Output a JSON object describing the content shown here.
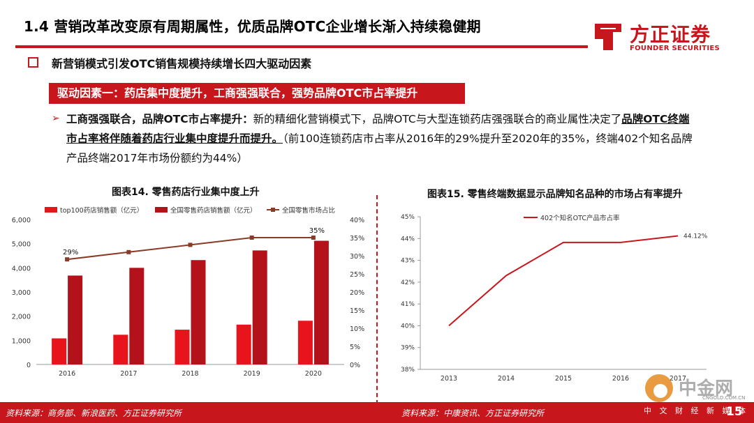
{
  "header": {
    "title": "1.4 营销改革改变原有周期属性，优质品牌OTC企业增长渐入持续稳健期",
    "logo_cn": "方正证券",
    "logo_en": "FOUNDER SECURITIES"
  },
  "section": {
    "title": "新营销模式引发OTC销售规模持续增长四大驱动因素"
  },
  "banner": {
    "text": "驱动因素一：药店集中度提升，工商强强联合，强势品牌OTC市占率提升"
  },
  "paragraph": {
    "lead": "工商强强联合，品牌OTC市占率提升：",
    "body1": "新的精细化营销模式下，品牌OTC与大型连锁药店强强联合的商业属性决定了",
    "emph": "品牌OTC终端市占率将伴随着药店行业集中度提升而提升。",
    "body2": "（前100连锁药店市占率从2016年的29%提升至2020年的35%，终端402个知名品牌产品终端2017年市场份额约为44%）"
  },
  "colors": {
    "accent": "#c8161d",
    "bar_light": "#e8141c",
    "bar_dark": "#b3121b",
    "line_brown": "#8b3a28"
  },
  "chart_data": [
    {
      "type": "bar",
      "title": "图表14. 零售药店行业集中度上升",
      "categories": [
        "2016",
        "2017",
        "2018",
        "2019",
        "2020"
      ],
      "series": [
        {
          "name": "top100药店销售额（亿元）",
          "type": "bar",
          "axis": "left",
          "values": [
            1080,
            1230,
            1440,
            1650,
            1810
          ]
        },
        {
          "name": "全国零售药店销售额（亿元）",
          "type": "bar",
          "axis": "left",
          "values": [
            3680,
            4000,
            4320,
            4720,
            5120
          ]
        },
        {
          "name": "全国零售市场占比",
          "type": "line",
          "axis": "right",
          "values": [
            0.29,
            0.31,
            0.33,
            0.35,
            0.35
          ]
        }
      ],
      "ylim_left": [
        0,
        6000
      ],
      "left_ticks": [
        "0",
        "1,000",
        "2,000",
        "3,000",
        "4,000",
        "5,000",
        "6,000"
      ],
      "ylim_right": [
        0,
        0.4
      ],
      "right_ticks": [
        "0%",
        "5%",
        "10%",
        "15%",
        "20%",
        "25%",
        "30%",
        "35%",
        "40%"
      ],
      "data_labels": [
        {
          "series": 2,
          "index": 0,
          "text": "29%"
        },
        {
          "series": 2,
          "index": 4,
          "text": "35%"
        }
      ],
      "legend": "top"
    },
    {
      "type": "line",
      "title": "图表15. 零售终端数据显示品牌知名品种的市场占有率提升",
      "x": [
        "2013",
        "2014",
        "2015",
        "2016",
        "2017"
      ],
      "series": [
        {
          "name": "402个知名OTC产品市占率",
          "values": [
            0.4,
            0.423,
            0.4382,
            0.4382,
            0.4412
          ]
        }
      ],
      "ylim": [
        0.38,
        0.45
      ],
      "y_ticks": [
        "38%",
        "39%",
        "40%",
        "41%",
        "42%",
        "43%",
        "44%",
        "45%"
      ],
      "data_labels": [
        {
          "index": 4,
          "text": "44.12%"
        }
      ],
      "legend": "top"
    }
  ],
  "footer": {
    "source_left": "资料来源：商务部、新浪医药、方正证券研究所",
    "source_right": "资料来源：中康资讯、方正证券研究所",
    "page": "15"
  },
  "watermark": {
    "cn": "中金网",
    "en": "CNGOLD.COM.CN",
    "sub": "中 文 财 经 新 媒 体"
  }
}
